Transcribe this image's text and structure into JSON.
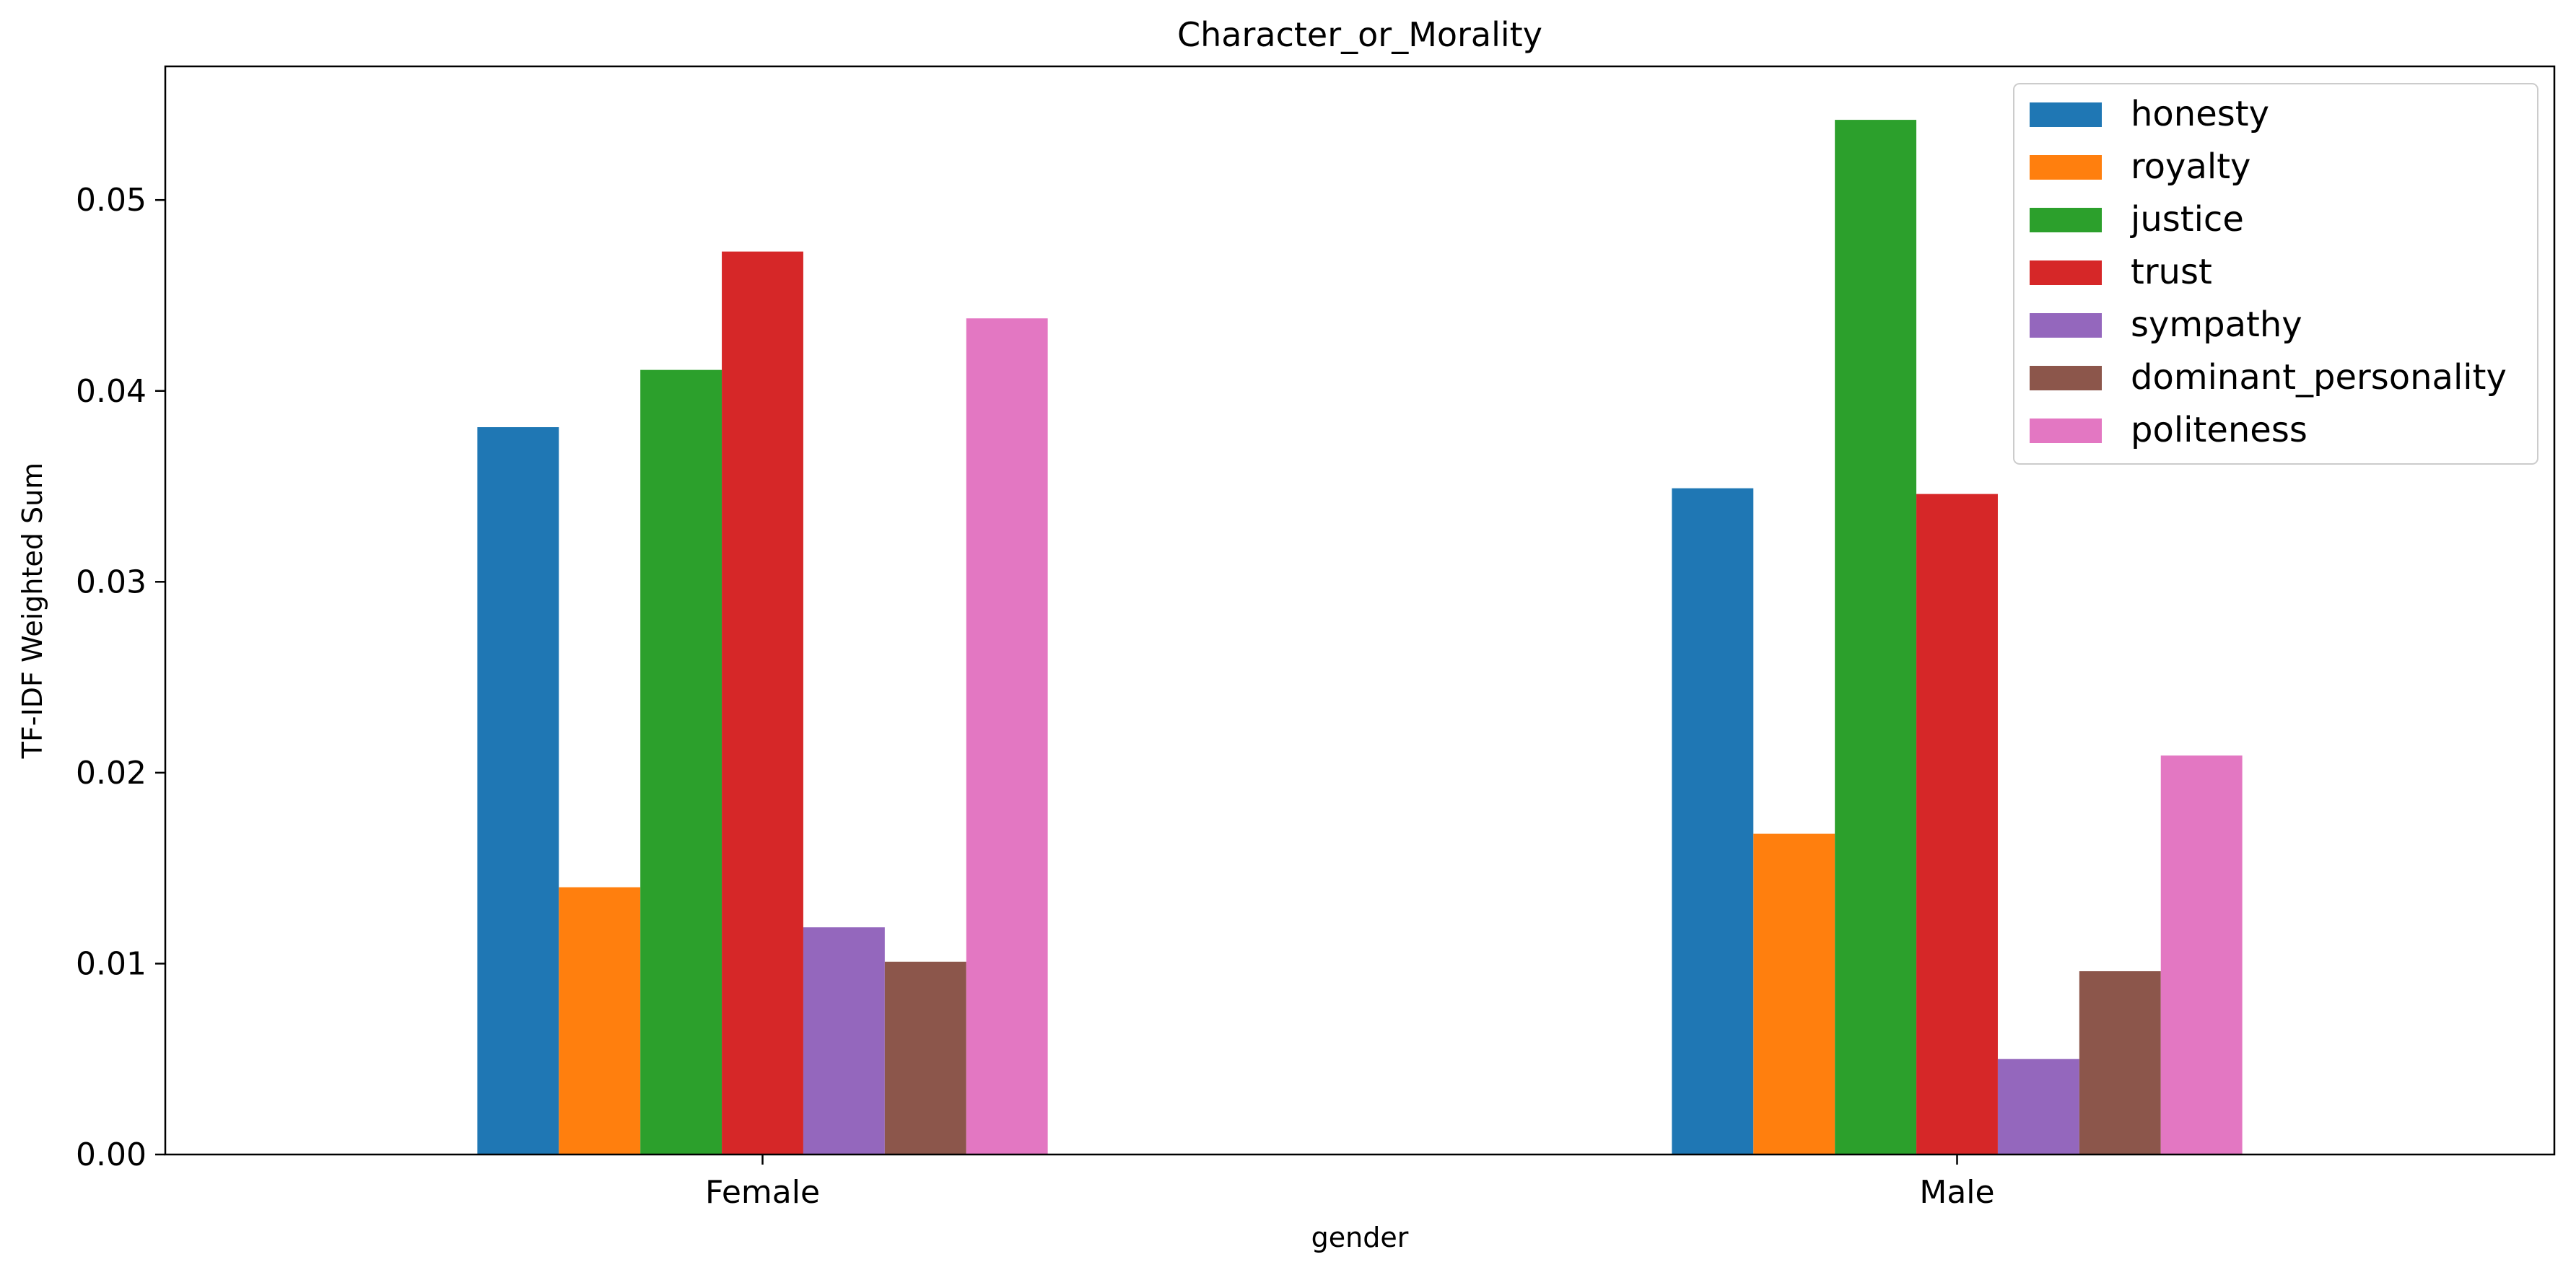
{
  "chart_data": {
    "type": "bar",
    "title": "Character_or_Morality",
    "xlabel": "gender",
    "ylabel": "TF-IDF Weighted Sum",
    "categories": [
      "Female",
      "Male"
    ],
    "ylim": [
      0,
      0.057
    ],
    "yticks": [
      0.0,
      0.01,
      0.02,
      0.03,
      0.04,
      0.05
    ],
    "ytick_labels": [
      "0.00",
      "0.01",
      "0.02",
      "0.03",
      "0.04",
      "0.05"
    ],
    "grid": false,
    "legend_position": "top-right",
    "series": [
      {
        "name": "honesty",
        "color": "#1f77b4",
        "values": [
          0.0381,
          0.0349
        ]
      },
      {
        "name": "royalty",
        "color": "#ff7f0e",
        "values": [
          0.014,
          0.0168
        ]
      },
      {
        "name": "justice",
        "color": "#2ca02c",
        "values": [
          0.0411,
          0.0542
        ]
      },
      {
        "name": "trust",
        "color": "#d62728",
        "values": [
          0.0473,
          0.0346
        ]
      },
      {
        "name": "sympathy",
        "color": "#9467bd",
        "values": [
          0.0119,
          0.005
        ]
      },
      {
        "name": "dominant_personality",
        "color": "#8c564b",
        "values": [
          0.0101,
          0.0096
        ]
      },
      {
        "name": "politeness",
        "color": "#e377c2",
        "values": [
          0.0438,
          0.0209
        ]
      }
    ]
  }
}
